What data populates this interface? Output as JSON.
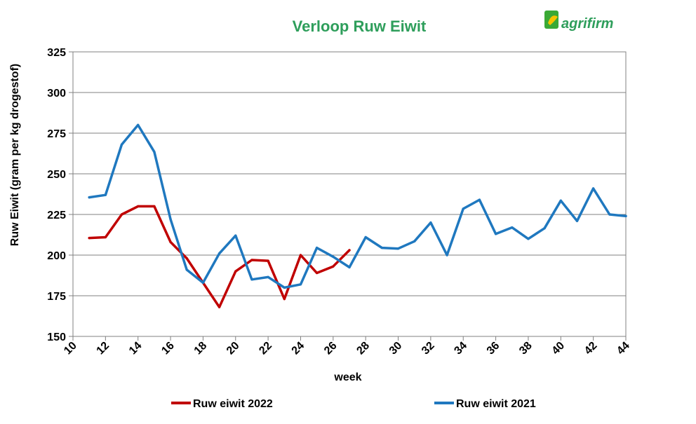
{
  "chart_data": {
    "type": "line",
    "title": "Verloop Ruw Eiwit",
    "xlabel": "week",
    "ylabel": "Ruw Eiwit (gram per kg drogestof)",
    "xlim": [
      10,
      44
    ],
    "ylim": [
      150,
      325
    ],
    "xticks": [
      10,
      12,
      14,
      16,
      18,
      20,
      22,
      24,
      26,
      28,
      30,
      32,
      34,
      36,
      38,
      40,
      42,
      44
    ],
    "yticks": [
      150,
      175,
      200,
      225,
      250,
      275,
      300,
      325
    ],
    "grid": "horizontal",
    "legend_position": "bottom",
    "series": [
      {
        "name": "Ruw eiwit 2022",
        "color": "#c00000",
        "x": [
          11,
          12,
          13,
          14,
          15,
          16,
          17,
          18,
          19,
          20,
          21,
          22,
          23,
          24,
          25,
          26,
          27
        ],
        "y": [
          210.5,
          211,
          225,
          230,
          230,
          208,
          198,
          183,
          168,
          190,
          197,
          196.5,
          173,
          200,
          189,
          193,
          203
        ]
      },
      {
        "name": "Ruw eiwit 2021",
        "color": "#1f78bf",
        "x": [
          11,
          12,
          13,
          14,
          15,
          16,
          17,
          18,
          19,
          20,
          21,
          22,
          23,
          24,
          25,
          26,
          27,
          28,
          29,
          30,
          31,
          32,
          33,
          34,
          35,
          36,
          37,
          38,
          39,
          40,
          41,
          42,
          43,
          44
        ],
        "y": [
          235.5,
          237,
          268,
          280,
          263.5,
          222,
          191,
          183,
          201,
          212,
          185,
          186.5,
          180,
          182,
          204.5,
          199,
          192.5,
          211,
          204.5,
          204,
          208.5,
          220,
          200,
          228.5,
          234,
          213,
          217,
          210,
          216.5,
          233.5,
          221,
          241,
          225,
          224
        ]
      }
    ]
  },
  "logo": {
    "text": "agrifirm"
  }
}
